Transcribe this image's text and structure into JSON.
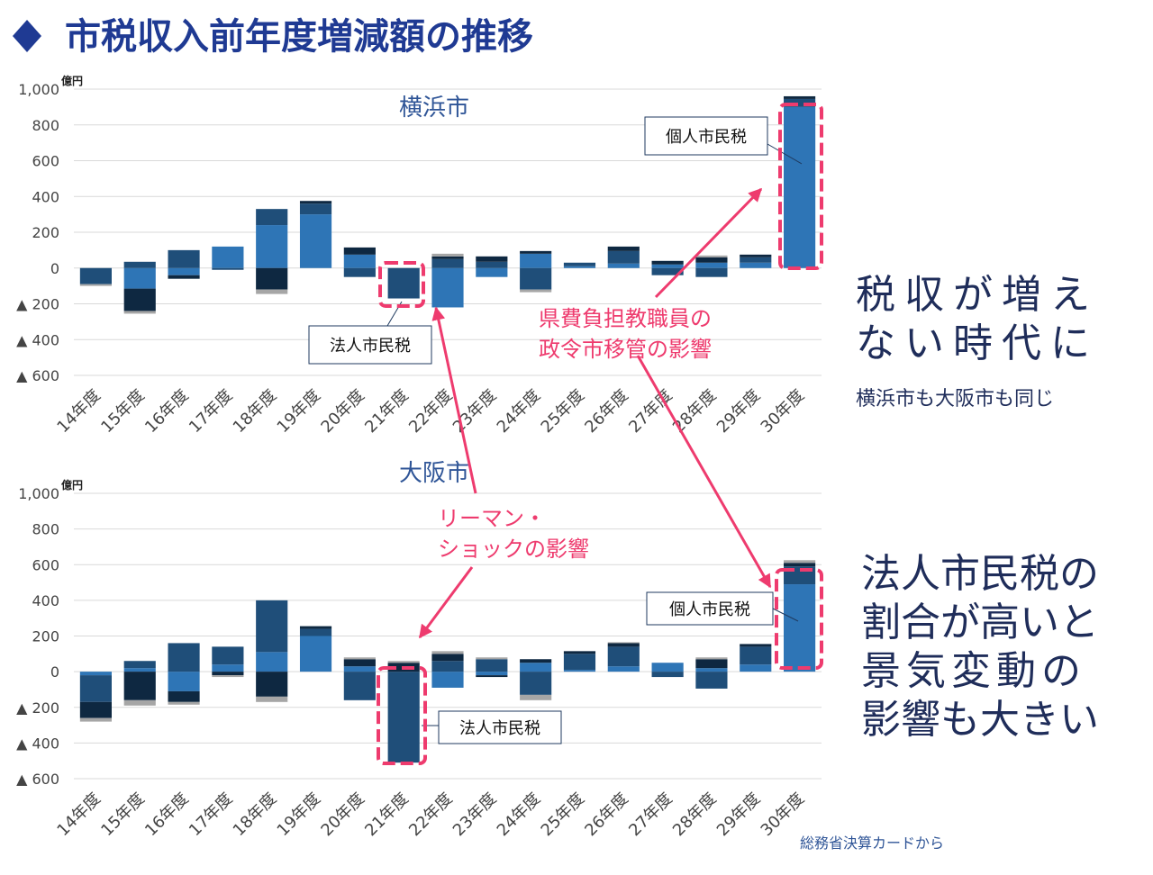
{
  "title": "市税収入前年度増減額の推移",
  "callouts": [
    [
      "県費負担教職員の",
      "政令市移管の影響"
    ],
    [
      "リーマン・",
      "ショックの影響"
    ]
  ],
  "side_text": {
    "top": [
      "税収が増え",
      "ない時代に"
    ],
    "sub": "横浜市も大阪市も同じ",
    "bottom": [
      "法人市民税の",
      "割合が高いと",
      "景気変動の",
      "影響も大きい"
    ]
  },
  "source": "総務省決算カードから",
  "chart_data": [
    {
      "type": "bar",
      "stacked": true,
      "title": "横浜市",
      "y_label": "億円",
      "categories": [
        "14年度",
        "15年度",
        "16年度",
        "17年度",
        "18年度",
        "19年度",
        "20年度",
        "21年度",
        "22年度",
        "23年度",
        "24年度",
        "25年度",
        "26年度",
        "27年度",
        "28年度",
        "29年度",
        "30年度"
      ],
      "series": [
        {
          "color": "#2e75b6",
          "values": [
            0,
            -115,
            -40,
            120,
            240,
            300,
            75,
            0,
            -220,
            -50,
            80,
            10,
            25,
            20,
            30,
            30,
            900
          ]
        },
        {
          "color": "#1f4e79",
          "values": [
            -90,
            35,
            100,
            -10,
            90,
            60,
            -50,
            -170,
            50,
            35,
            -120,
            20,
            70,
            -40,
            -50,
            30,
            45
          ]
        },
        {
          "color": "#0e2841",
          "values": [
            0,
            -125,
            -20,
            0,
            -120,
            15,
            40,
            0,
            15,
            30,
            15,
            0,
            25,
            20,
            30,
            15,
            15
          ]
        },
        {
          "color": "#a6a6a6",
          "values": [
            -10,
            -15,
            0,
            0,
            -25,
            0,
            0,
            0,
            15,
            0,
            -15,
            0,
            0,
            0,
            10,
            0,
            0
          ]
        }
      ],
      "ylim": [
        -600,
        1000
      ],
      "yticks": [
        {
          "value": -600,
          "label": "▲ 600"
        },
        {
          "value": -400,
          "label": "▲ 400"
        },
        {
          "value": -200,
          "label": "▲ 200"
        },
        0,
        200,
        400,
        600,
        800,
        {
          "value": 1000,
          "label": "1,000"
        }
      ],
      "grid": true,
      "annotations": [
        "個人市民税",
        "法人市民税"
      ]
    },
    {
      "type": "bar",
      "stacked": true,
      "title": "大阪市",
      "y_label": "億円",
      "categories": [
        "14年度",
        "15年度",
        "16年度",
        "17年度",
        "18年度",
        "19年度",
        "20年度",
        "21年度",
        "22年度",
        "23年度",
        "24年度",
        "25年度",
        "26年度",
        "27年度",
        "28年度",
        "29年度",
        "30年度"
      ],
      "series": [
        {
          "color": "#2e75b6",
          "values": [
            -20,
            20,
            -110,
            40,
            110,
            200,
            30,
            0,
            -90,
            -20,
            50,
            10,
            30,
            50,
            20,
            40,
            490
          ]
        },
        {
          "color": "#1f4e79",
          "values": [
            -150,
            40,
            160,
            100,
            290,
            40,
            -160,
            -510,
            60,
            70,
            -130,
            90,
            110,
            -30,
            -95,
            100,
            100
          ]
        },
        {
          "color": "#0e2841",
          "values": [
            -90,
            -160,
            -60,
            -20,
            -140,
            15,
            40,
            50,
            40,
            -10,
            20,
            15,
            20,
            0,
            50,
            15,
            20
          ]
        },
        {
          "color": "#a6a6a6",
          "values": [
            -20,
            -30,
            -15,
            -10,
            -30,
            0,
            10,
            10,
            15,
            10,
            -30,
            0,
            5,
            0,
            10,
            0,
            15
          ]
        }
      ],
      "ylim": [
        -600,
        1000
      ],
      "yticks": [
        {
          "value": -600,
          "label": "▲ 600"
        },
        {
          "value": -400,
          "label": "▲ 400"
        },
        {
          "value": -200,
          "label": "▲ 200"
        },
        0,
        200,
        400,
        600,
        800,
        {
          "value": 1000,
          "label": "1,000"
        }
      ],
      "grid": true,
      "annotations": [
        "個人市民税",
        "法人市民税"
      ]
    }
  ]
}
